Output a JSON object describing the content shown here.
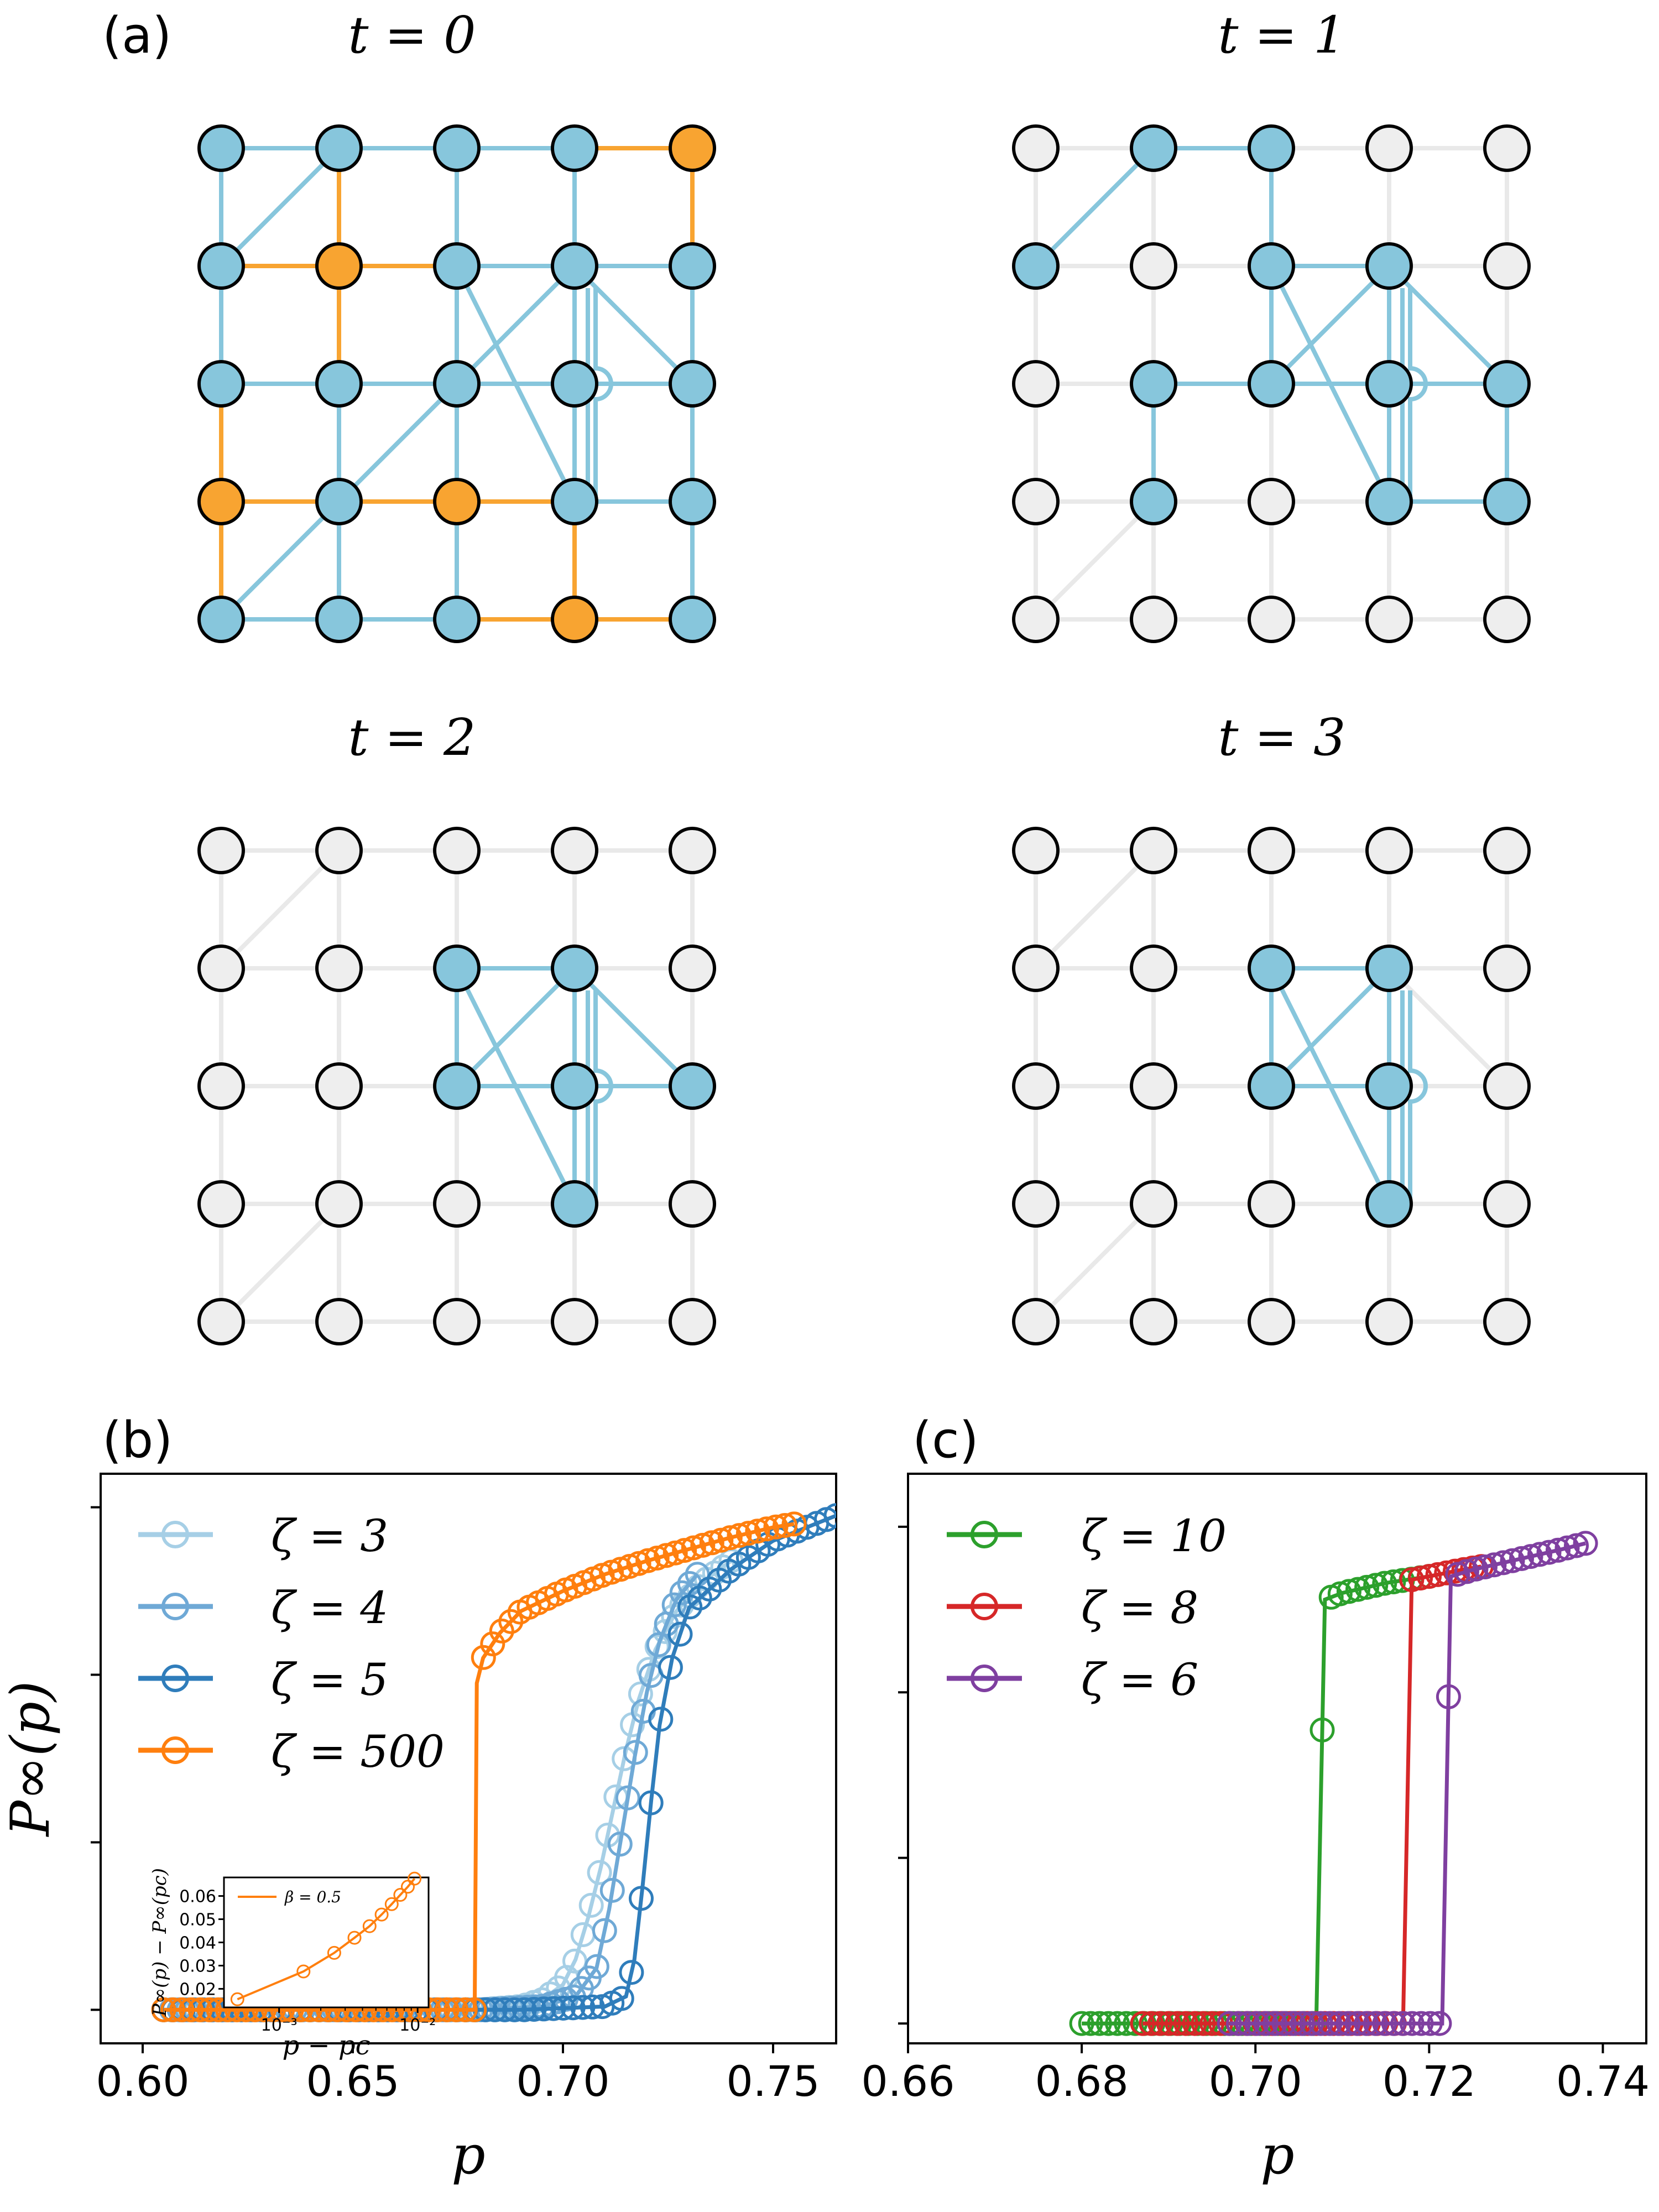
{
  "panel_a": {
    "label": "(a)",
    "titles": [
      "t = 0",
      "t = 1",
      "t = 2",
      "t = 3"
    ]
  },
  "panel_b": {
    "label": "(b)",
    "ylabel": "P∞(p)",
    "xlabel": "p",
    "inset": {
      "ylabel": "P∞(p) − P∞(pc)",
      "xlabel": "p − pc",
      "legend": "β = 0.5",
      "yticks": [
        "0.02",
        "0.03",
        "0.04",
        "0.05",
        "0.06"
      ],
      "xticks": [
        "10⁻³",
        "10⁻²"
      ]
    }
  },
  "panel_c": {
    "label": "(c)",
    "xlabel": "p"
  },
  "colors": {
    "node_blue": "#87c6dc",
    "node_orange": "#f8a431",
    "node_gray": "#eeeeee",
    "edge_blue": "#87c6dc",
    "edge_orange": "#f8a431",
    "edge_gray": "#e9e9e9",
    "zeta3": "#a6cfe6",
    "zeta4": "#6fa9d6",
    "zeta5": "#2f7dbb",
    "zeta500": "#ff7f0e",
    "zeta10": "#2ca02c",
    "zeta8": "#d62728",
    "zeta6": "#7f3fa0"
  },
  "chart_data": [
    {
      "type": "line",
      "panel": "(b)",
      "xlabel": "p",
      "ylabel": "P∞(p)",
      "xlim": [
        0.59,
        0.765
      ],
      "ylim": [
        -0.02,
        0.32
      ],
      "xticks": [
        0.6,
        0.65,
        0.7,
        0.75
      ],
      "xtick_labels": [
        "0.60",
        "0.65",
        "0.70",
        "0.75"
      ],
      "yticks": [
        0.0,
        0.1,
        0.2,
        0.3
      ],
      "ytick_labels_visible": false,
      "grid": false,
      "legend_position": "top-left",
      "marker": "open-circle",
      "series": [
        {
          "name": "ζ = 3",
          "color": "#a6cfe6",
          "x": [
            0.605,
            0.65,
            0.68,
            0.69,
            0.695,
            0.7,
            0.703,
            0.706,
            0.709,
            0.712,
            0.715,
            0.718,
            0.722,
            0.727,
            0.733,
            0.74
          ],
          "y": [
            0.0,
            0.0,
            0.0,
            0.002,
            0.006,
            0.015,
            0.03,
            0.055,
            0.085,
            0.12,
            0.155,
            0.185,
            0.215,
            0.238,
            0.255,
            0.268
          ]
        },
        {
          "name": "ζ = 4",
          "color": "#6fa9d6",
          "x": [
            0.605,
            0.65,
            0.68,
            0.695,
            0.703,
            0.708,
            0.711,
            0.714,
            0.717,
            0.72,
            0.723,
            0.727,
            0.732
          ],
          "y": [
            0.0,
            0.0,
            0.0,
            0.002,
            0.008,
            0.025,
            0.06,
            0.105,
            0.15,
            0.19,
            0.22,
            0.245,
            0.26
          ]
        },
        {
          "name": "ζ = 5",
          "color": "#2f7dbb",
          "x": [
            0.605,
            0.65,
            0.69,
            0.71,
            0.715,
            0.717,
            0.719,
            0.721,
            0.723,
            0.726,
            0.73,
            0.74,
            0.75,
            0.76,
            0.765
          ],
          "y": [
            0.0,
            0.0,
            0.0,
            0.002,
            0.008,
            0.03,
            0.075,
            0.125,
            0.17,
            0.21,
            0.24,
            0.263,
            0.28,
            0.29,
            0.295
          ]
        },
        {
          "name": "ζ = 500",
          "color": "#ff7f0e",
          "x": [
            0.605,
            0.63,
            0.65,
            0.67,
            0.679,
            0.6795,
            0.681,
            0.685,
            0.69,
            0.7,
            0.71,
            0.72,
            0.73,
            0.74,
            0.75,
            0.755
          ],
          "y": [
            0.0,
            0.0,
            0.0,
            0.0,
            0.0,
            0.195,
            0.21,
            0.225,
            0.238,
            0.25,
            0.26,
            0.268,
            0.275,
            0.282,
            0.288,
            0.29
          ]
        }
      ],
      "inset": {
        "type": "line",
        "xscale": "log",
        "xlim": [
          0.0004,
          0.012
        ],
        "ylim": [
          0.012,
          0.068
        ],
        "xlabel": "p − pc",
        "ylabel": "P∞(p) − P∞(pc)",
        "legend": "β = 0.5",
        "series": [
          {
            "name": "β = 0.5",
            "color": "#ff7f0e",
            "x": [
              0.0005,
              0.0015,
              0.0025,
              0.0035,
              0.0045,
              0.0055,
              0.0065,
              0.0075,
              0.0085,
              0.0095
            ],
            "y": [
              0.0155,
              0.0275,
              0.0355,
              0.042,
              0.047,
              0.052,
              0.0565,
              0.0605,
              0.064,
              0.0675
            ]
          }
        ]
      }
    },
    {
      "type": "line",
      "panel": "(c)",
      "xlabel": "p",
      "xlim": [
        0.66,
        0.745
      ],
      "ylim": [
        -0.03,
        0.83
      ],
      "xticks": [
        0.66,
        0.68,
        0.7,
        0.72,
        0.74
      ],
      "xtick_labels": [
        "0.66",
        "0.68",
        "0.70",
        "0.72",
        "0.74"
      ],
      "yticks": [
        0.0,
        0.25,
        0.5,
        0.75
      ],
      "ytick_labels_visible": false,
      "grid": false,
      "legend_position": "top-left",
      "marker": "open-circle",
      "series": [
        {
          "name": "ζ = 10",
          "color": "#2ca02c",
          "x": [
            0.68,
            0.685,
            0.69,
            0.7,
            0.707,
            0.708,
            0.71,
            0.715,
            0.72
          ],
          "y": [
            0.0,
            0.0,
            0.0,
            0.0,
            0.0,
            0.64,
            0.65,
            0.665,
            0.675
          ]
        },
        {
          "name": "ζ = 8",
          "color": "#d62728",
          "x": [
            0.687,
            0.69,
            0.7,
            0.71,
            0.717,
            0.718,
            0.72,
            0.723,
            0.726
          ],
          "y": [
            0.0,
            0.0,
            0.0,
            0.0,
            0.0,
            0.67,
            0.675,
            0.683,
            0.69
          ]
        },
        {
          "name": "ζ = 6",
          "color": "#7f3fa0",
          "x": [
            0.697,
            0.7,
            0.71,
            0.72,
            0.7215,
            0.7225,
            0.725,
            0.73,
            0.735,
            0.738
          ],
          "y": [
            0.0,
            0.0,
            0.0,
            0.0,
            0.0,
            0.675,
            0.685,
            0.7,
            0.715,
            0.725
          ]
        }
      ]
    }
  ]
}
